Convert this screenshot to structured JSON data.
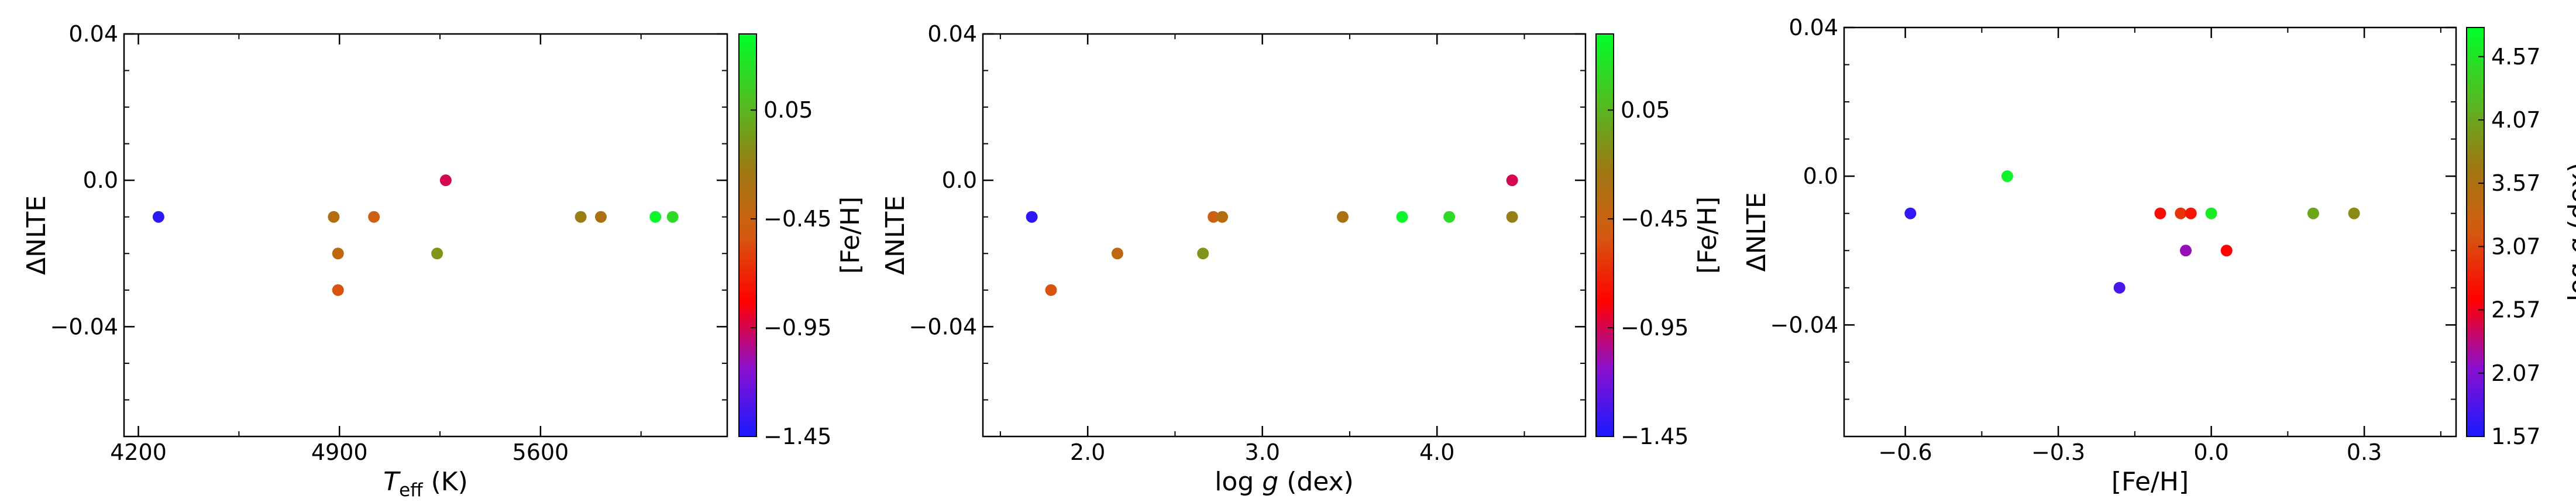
{
  "chart_data": [
    {
      "type": "scatter",
      "xlabel": "T_eff (K)",
      "xlabel_parts": {
        "symbol": "T",
        "subscript": "eff",
        "unit": " (K)"
      },
      "ylabel": "ΔNLTE",
      "xlim": [
        4150,
        6250
      ],
      "ylim": [
        -0.07,
        0.04
      ],
      "xticks": [
        4200,
        4900,
        5600
      ],
      "xtick_labels": [
        "4200",
        "4900",
        "5600"
      ],
      "yticks": [
        -0.04,
        0.0,
        0.04
      ],
      "ytick_labels": [
        "−0.04",
        "0.0",
        "0.04"
      ],
      "grid": false,
      "colorbar": {
        "label": "[Fe/H]",
        "range": [
          -1.45,
          0.4
        ],
        "ticks": [
          -1.45,
          -0.95,
          -0.45,
          0.05
        ],
        "tick_labels": [
          "−1.45",
          "−0.95",
          "−0.45",
          "0.05"
        ],
        "colormap": [
          "#1a1aff",
          "#8a0fd0",
          "#ff0000",
          "#d45a10",
          "#9c7a12",
          "#4fbf22",
          "#00ff2a"
        ]
      },
      "points": [
        {
          "x": 4270,
          "y": -0.01,
          "c": -1.4
        },
        {
          "x": 4880,
          "y": -0.01,
          "c": -0.35
        },
        {
          "x": 4895,
          "y": -0.02,
          "c": -0.4
        },
        {
          "x": 4895,
          "y": -0.03,
          "c": -0.55
        },
        {
          "x": 5020,
          "y": -0.01,
          "c": -0.48
        },
        {
          "x": 5240,
          "y": -0.02,
          "c": -0.1
        },
        {
          "x": 5270,
          "y": 0.0,
          "c": -0.95
        },
        {
          "x": 5740,
          "y": -0.01,
          "c": -0.2
        },
        {
          "x": 5810,
          "y": -0.01,
          "c": -0.3
        },
        {
          "x": 6000,
          "y": -0.01,
          "c": 0.36
        },
        {
          "x": 6060,
          "y": -0.01,
          "c": 0.22
        }
      ]
    },
    {
      "type": "scatter",
      "xlabel": "log g (dex)",
      "xlabel_parts": {
        "prefix": "log ",
        "symbol": "g",
        "suffix": " (dex)"
      },
      "ylabel": "ΔNLTE",
      "xlim": [
        1.4,
        4.85
      ],
      "ylim": [
        -0.07,
        0.04
      ],
      "xticks": [
        2.0,
        3.0,
        4.0
      ],
      "xtick_labels": [
        "2.0",
        "3.0",
        "4.0"
      ],
      "yticks": [
        -0.04,
        0.0,
        0.04
      ],
      "ytick_labels": [
        "−0.04",
        "0.0",
        "0.04"
      ],
      "grid": false,
      "colorbar": {
        "label": "[Fe/H]",
        "range": [
          -1.45,
          0.4
        ],
        "ticks": [
          -1.45,
          -0.95,
          -0.45,
          0.05
        ],
        "tick_labels": [
          "−1.45",
          "−0.95",
          "−0.45",
          "0.05"
        ],
        "colormap": [
          "#1a1aff",
          "#8a0fd0",
          "#ff0000",
          "#d45a10",
          "#9c7a12",
          "#4fbf22",
          "#00ff2a"
        ]
      },
      "points": [
        {
          "x": 1.68,
          "y": -0.01,
          "c": -1.4
        },
        {
          "x": 1.79,
          "y": -0.03,
          "c": -0.55
        },
        {
          "x": 2.17,
          "y": -0.02,
          "c": -0.4
        },
        {
          "x": 2.66,
          "y": -0.02,
          "c": -0.1
        },
        {
          "x": 2.72,
          "y": -0.01,
          "c": -0.48
        },
        {
          "x": 2.77,
          "y": -0.01,
          "c": -0.35
        },
        {
          "x": 3.46,
          "y": -0.01,
          "c": -0.3
        },
        {
          "x": 3.8,
          "y": -0.01,
          "c": 0.36
        },
        {
          "x": 4.07,
          "y": -0.01,
          "c": 0.22
        },
        {
          "x": 4.43,
          "y": -0.01,
          "c": -0.2
        },
        {
          "x": 4.43,
          "y": 0.0,
          "c": -0.95
        }
      ]
    },
    {
      "type": "scatter",
      "xlabel": "[Fe/H]",
      "ylabel": "ΔNLTE",
      "xlim": [
        -0.72,
        0.48
      ],
      "ylim": [
        -0.07,
        0.04
      ],
      "xticks": [
        -0.6,
        -0.3,
        0.0,
        0.3
      ],
      "xtick_labels": [
        "−0.6",
        "−0.3",
        "0.0",
        "0.3"
      ],
      "yticks": [
        -0.04,
        0.0,
        0.04
      ],
      "ytick_labels": [
        "−0.04",
        "0.0",
        "0.04"
      ],
      "grid": false,
      "colorbar": {
        "label": "log g (dex)",
        "label_parts": {
          "prefix": "log ",
          "symbol": "g",
          "suffix": " (dex)"
        },
        "range": [
          1.57,
          4.8
        ],
        "ticks": [
          1.57,
          2.07,
          2.57,
          3.07,
          3.57,
          4.07,
          4.57
        ],
        "tick_labels": [
          "1.57",
          "2.07",
          "2.57",
          "3.07",
          "3.57",
          "4.07",
          "4.57"
        ],
        "colormap": [
          "#1a1aff",
          "#8a0fd0",
          "#ff0000",
          "#d45a10",
          "#9c7a12",
          "#4fbf22",
          "#00ff2a"
        ]
      },
      "points": [
        {
          "x": -0.59,
          "y": -0.01,
          "c": 1.68
        },
        {
          "x": -0.4,
          "y": 0.0,
          "c": 4.7
        },
        {
          "x": -0.18,
          "y": -0.03,
          "c": 1.79
        },
        {
          "x": -0.1,
          "y": -0.01,
          "c": 2.72
        },
        {
          "x": -0.06,
          "y": -0.01,
          "c": 2.95
        },
        {
          "x": -0.04,
          "y": -0.01,
          "c": 2.77
        },
        {
          "x": -0.05,
          "y": -0.02,
          "c": 2.17
        },
        {
          "x": 0.0,
          "y": -0.01,
          "c": 4.62
        },
        {
          "x": 0.03,
          "y": -0.02,
          "c": 2.66
        },
        {
          "x": 0.2,
          "y": -0.01,
          "c": 4.07
        },
        {
          "x": 0.28,
          "y": -0.01,
          "c": 3.85
        }
      ]
    }
  ]
}
